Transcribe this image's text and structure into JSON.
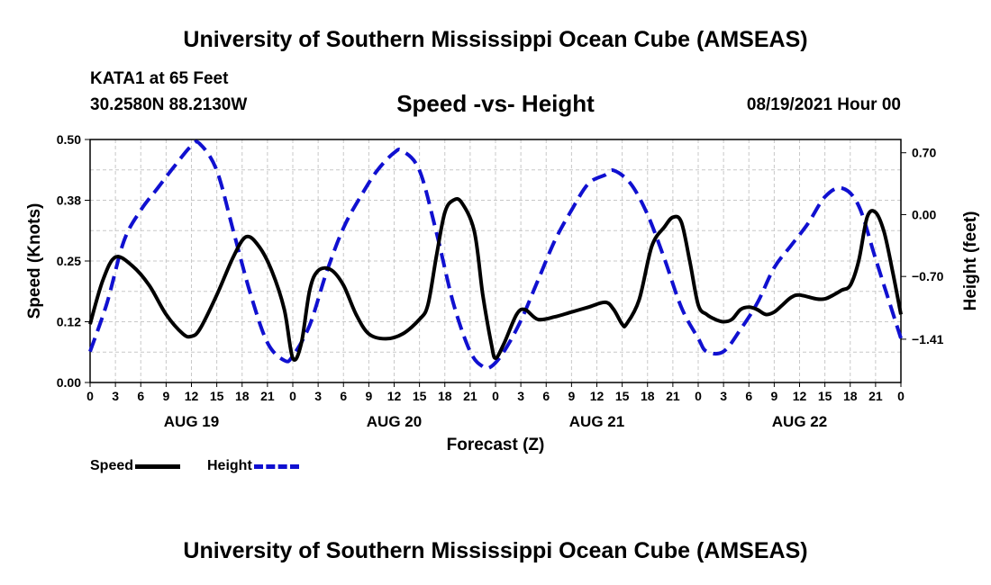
{
  "header": {
    "top_title": "University of Southern Mississippi Ocean Cube (AMSEAS)",
    "station": "KATA1 at 65 Feet",
    "coords": "30.2580N  88.2130W",
    "chart_title": "Speed -vs- Height",
    "datetime": "08/19/2021 Hour 00"
  },
  "footer": {
    "bottom_title": "University of Southern Mississippi Ocean Cube (AMSEAS)"
  },
  "legend": {
    "speed_label": "Speed",
    "height_label": "Height"
  },
  "colors": {
    "speed": "#000000",
    "height": "#1010d0",
    "grid": "#c8c8c8"
  },
  "chart_data": {
    "type": "line",
    "title": "Speed -vs- Height",
    "xlabel": "Forecast (Z)",
    "ylabel_left": "Speed (Knots)",
    "ylabel_right": "Height (feet)",
    "x_range_hours": [
      0,
      96
    ],
    "ylim_left": [
      0,
      0.5
    ],
    "ylim_right": [
      -1.9,
      0.85
    ],
    "left_ticks": [
      {
        "v": 0.0,
        "label": "0.00"
      },
      {
        "v": 0.125,
        "label": "0.12"
      },
      {
        "v": 0.25,
        "label": "0.25"
      },
      {
        "v": 0.375,
        "label": "0.38"
      },
      {
        "v": 0.5,
        "label": "0.50"
      }
    ],
    "right_ticks": [
      {
        "v": 0.7,
        "label": "0.70"
      },
      {
        "v": 0.0,
        "label": "0.00"
      },
      {
        "v": -0.7,
        "label": "−0.70"
      },
      {
        "v": -1.41,
        "label": "−1.41"
      }
    ],
    "x_ticks": [
      "0",
      "3",
      "6",
      "9",
      "12",
      "15",
      "18",
      "21",
      "0",
      "3",
      "6",
      "9",
      "12",
      "15",
      "18",
      "21",
      "0",
      "3",
      "6",
      "9",
      "12",
      "15",
      "18",
      "21",
      "0",
      "3",
      "6",
      "9",
      "12",
      "15",
      "18",
      "21",
      "0"
    ],
    "day_labels": [
      {
        "hour": 12,
        "label": "AUG 19"
      },
      {
        "hour": 36,
        "label": "AUG 20"
      },
      {
        "hour": 60,
        "label": "AUG 21"
      },
      {
        "hour": 84,
        "label": "AUG 22"
      }
    ],
    "series": [
      {
        "name": "Speed",
        "axis": "left",
        "style": "solid",
        "points": [
          [
            0,
            0.12
          ],
          [
            1.5,
            0.21
          ],
          [
            3,
            0.258
          ],
          [
            5,
            0.24
          ],
          [
            7,
            0.2
          ],
          [
            9,
            0.14
          ],
          [
            11,
            0.1
          ],
          [
            12,
            0.095
          ],
          [
            13,
            0.11
          ],
          [
            15,
            0.18
          ],
          [
            17,
            0.26
          ],
          [
            18.5,
            0.3
          ],
          [
            20,
            0.28
          ],
          [
            21.5,
            0.23
          ],
          [
            23,
            0.15
          ],
          [
            24,
            0.05
          ],
          [
            25,
            0.08
          ],
          [
            26,
            0.19
          ],
          [
            27,
            0.23
          ],
          [
            28.5,
            0.232
          ],
          [
            30,
            0.2
          ],
          [
            31.5,
            0.14
          ],
          [
            33,
            0.1
          ],
          [
            35,
            0.09
          ],
          [
            37,
            0.1
          ],
          [
            39,
            0.13
          ],
          [
            40,
            0.16
          ],
          [
            41,
            0.26
          ],
          [
            42,
            0.35
          ],
          [
            43,
            0.375
          ],
          [
            44,
            0.37
          ],
          [
            45.5,
            0.31
          ],
          [
            46.5,
            0.18
          ],
          [
            47.5,
            0.08
          ],
          [
            48,
            0.05
          ],
          [
            49,
            0.08
          ],
          [
            50.5,
            0.14
          ],
          [
            51.5,
            0.15
          ],
          [
            53,
            0.13
          ],
          [
            55,
            0.135
          ],
          [
            57,
            0.145
          ],
          [
            59,
            0.155
          ],
          [
            61,
            0.165
          ],
          [
            62,
            0.15
          ],
          [
            63,
            0.12
          ],
          [
            63.5,
            0.12
          ],
          [
            65,
            0.17
          ],
          [
            66.5,
            0.28
          ],
          [
            68,
            0.32
          ],
          [
            69,
            0.34
          ],
          [
            70,
            0.33
          ],
          [
            71,
            0.25
          ],
          [
            72,
            0.16
          ],
          [
            73,
            0.14
          ],
          [
            74,
            0.13
          ],
          [
            75,
            0.125
          ],
          [
            76,
            0.13
          ],
          [
            77,
            0.15
          ],
          [
            78,
            0.155
          ],
          [
            79,
            0.15
          ],
          [
            80,
            0.14
          ],
          [
            81,
            0.145
          ],
          [
            82,
            0.16
          ],
          [
            83,
            0.175
          ],
          [
            84,
            0.18
          ],
          [
            86,
            0.172
          ],
          [
            87,
            0.172
          ],
          [
            88,
            0.18
          ],
          [
            89,
            0.19
          ],
          [
            90,
            0.2
          ],
          [
            91,
            0.25
          ],
          [
            92,
            0.34
          ],
          [
            93,
            0.35
          ],
          [
            94,
            0.31
          ],
          [
            95,
            0.23
          ],
          [
            96,
            0.14
          ]
        ]
      },
      {
        "name": "Height",
        "axis": "right",
        "style": "dashed",
        "points": [
          [
            0,
            -1.55
          ],
          [
            2,
            -1.0
          ],
          [
            4,
            -0.3
          ],
          [
            6,
            0.05
          ],
          [
            8,
            0.3
          ],
          [
            10,
            0.55
          ],
          [
            12,
            0.78
          ],
          [
            13,
            0.8
          ],
          [
            15,
            0.5
          ],
          [
            17,
            -0.2
          ],
          [
            19,
            -0.9
          ],
          [
            21,
            -1.45
          ],
          [
            23,
            -1.65
          ],
          [
            24,
            -1.6
          ],
          [
            26,
            -1.25
          ],
          [
            28,
            -0.65
          ],
          [
            30,
            -0.15
          ],
          [
            32,
            0.2
          ],
          [
            34,
            0.5
          ],
          [
            36,
            0.7
          ],
          [
            37,
            0.72
          ],
          [
            39,
            0.5
          ],
          [
            41,
            -0.2
          ],
          [
            43,
            -1.0
          ],
          [
            45,
            -1.55
          ],
          [
            46.5,
            -1.72
          ],
          [
            47.5,
            -1.72
          ],
          [
            49,
            -1.55
          ],
          [
            51,
            -1.2
          ],
          [
            53,
            -0.75
          ],
          [
            55,
            -0.3
          ],
          [
            57,
            0.05
          ],
          [
            59,
            0.35
          ],
          [
            61,
            0.45
          ],
          [
            62,
            0.5
          ],
          [
            64,
            0.35
          ],
          [
            66,
            0.0
          ],
          [
            68,
            -0.5
          ],
          [
            70,
            -1.05
          ],
          [
            72,
            -1.4
          ],
          [
            73,
            -1.55
          ],
          [
            75,
            -1.55
          ],
          [
            77,
            -1.3
          ],
          [
            79,
            -1.0
          ],
          [
            81,
            -0.6
          ],
          [
            83,
            -0.35
          ],
          [
            85,
            -0.1
          ],
          [
            87,
            0.2
          ],
          [
            89,
            0.3
          ],
          [
            91,
            0.1
          ],
          [
            93,
            -0.5
          ],
          [
            95,
            -1.1
          ],
          [
            96,
            -1.4
          ]
        ]
      }
    ]
  }
}
